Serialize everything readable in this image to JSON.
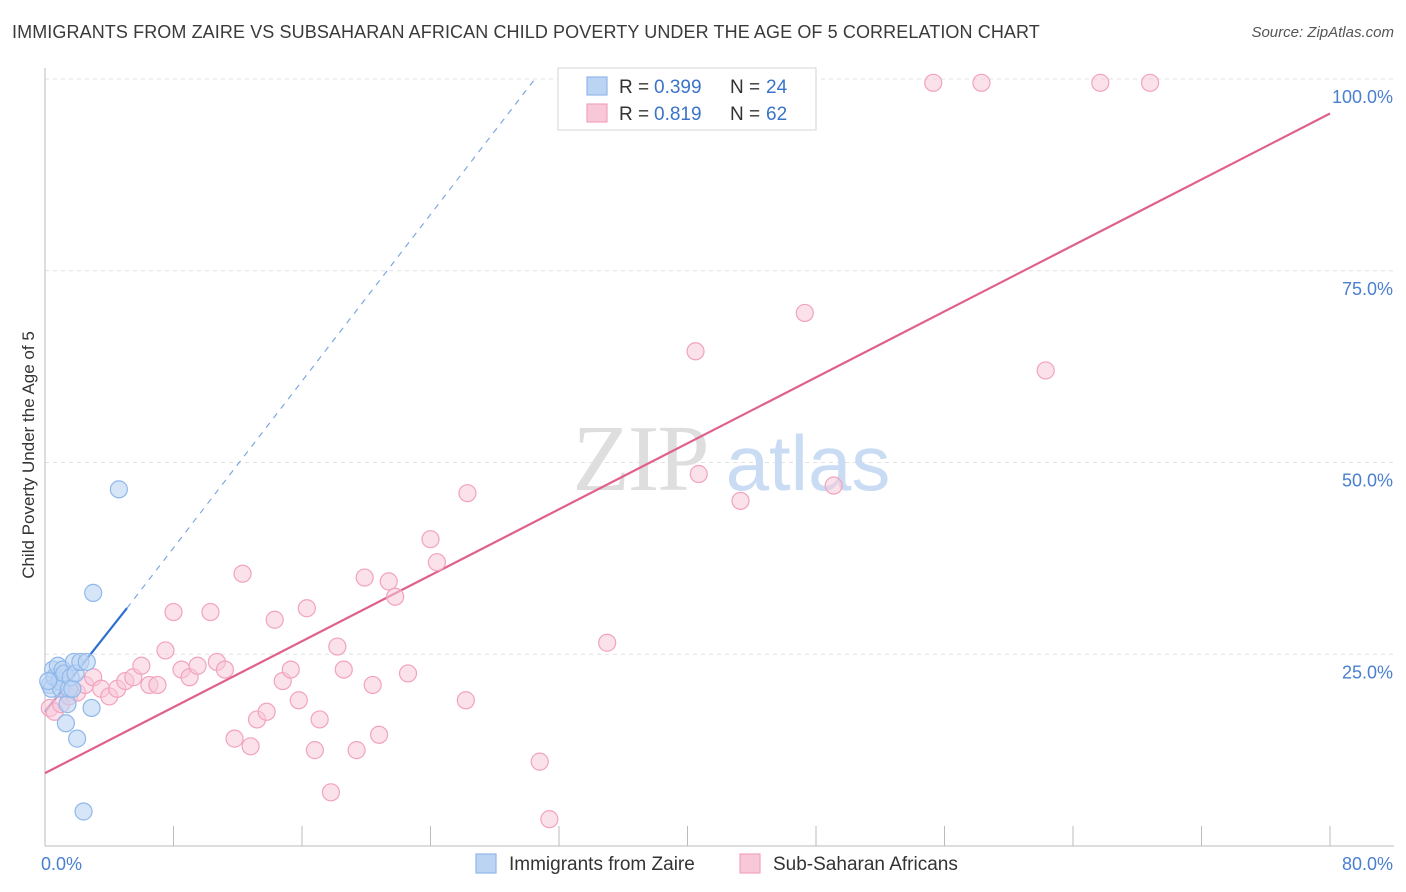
{
  "title": "IMMIGRANTS FROM ZAIRE VS SUBSAHARAN AFRICAN CHILD POVERTY UNDER THE AGE OF 5 CORRELATION CHART",
  "source": "Source: ZipAtlas.com",
  "watermark": {
    "zip": "ZIP",
    "atlas": "atlas"
  },
  "chart_data": {
    "type": "scatter",
    "title": "IMMIGRANTS FROM ZAIRE VS SUBSAHARAN AFRICAN CHILD POVERTY UNDER THE AGE OF 5 CORRELATION CHART",
    "xlabel": "",
    "ylabel": "Child Poverty Under the Age of 5",
    "xlim": [
      0,
      80
    ],
    "ylim": [
      0,
      100
    ],
    "x_tick_labels": [
      "0.0%",
      "80.0%"
    ],
    "y_ticks": [
      25,
      50,
      75,
      100
    ],
    "y_tick_labels": [
      "25.0%",
      "50.0%",
      "75.0%",
      "100.0%"
    ],
    "grid": true,
    "legend_position": "top-center",
    "stats": [
      {
        "r_label": "R =",
        "r": "0.399",
        "n_label": "N =",
        "n": "24"
      },
      {
        "r_label": "R =",
        "r": "0.819",
        "n_label": "N =",
        "n": "62"
      }
    ],
    "series": [
      {
        "name": "Immigrants from Zaire",
        "color": "#8fb8ea",
        "fill": "#bcd4f3",
        "line_color": "#2f6fd0",
        "trend": {
          "x0": 0,
          "y0": 17.5,
          "x1": 5.1,
          "y1": 31.0,
          "dash_to_x": 30.5,
          "dash_to_y": 100
        },
        "points": [
          [
            0.3,
            21
          ],
          [
            0.4,
            20.5
          ],
          [
            0.5,
            23
          ],
          [
            0.6,
            22
          ],
          [
            0.8,
            23.5
          ],
          [
            0.9,
            21.5
          ],
          [
            1.0,
            20.5
          ],
          [
            1.1,
            23
          ],
          [
            1.2,
            22.5
          ],
          [
            1.3,
            16
          ],
          [
            1.4,
            18.5
          ],
          [
            1.5,
            20.5
          ],
          [
            1.6,
            22
          ],
          [
            1.7,
            20.5
          ],
          [
            1.8,
            24
          ],
          [
            1.9,
            22.5
          ],
          [
            2.0,
            14
          ],
          [
            2.2,
            24
          ],
          [
            2.4,
            4.5
          ],
          [
            2.6,
            24
          ],
          [
            2.9,
            18
          ],
          [
            3.0,
            33
          ],
          [
            4.6,
            46.5
          ],
          [
            0.2,
            21.5
          ]
        ]
      },
      {
        "name": "Sub-Saharan Africans",
        "color": "#f2a3bd",
        "fill": "#f8c8d8",
        "line_color": "#e0608d",
        "trend": {
          "x0": 0,
          "y0": 9.5,
          "x1": 80,
          "y1": 95.5
        },
        "points": [
          [
            0.3,
            18
          ],
          [
            0.6,
            17.5
          ],
          [
            1.0,
            18.5
          ],
          [
            1.5,
            19.5
          ],
          [
            2.0,
            20
          ],
          [
            2.5,
            21
          ],
          [
            3.0,
            22
          ],
          [
            3.5,
            20.5
          ],
          [
            4.0,
            19.5
          ],
          [
            4.5,
            20.5
          ],
          [
            5.0,
            21.5
          ],
          [
            5.5,
            22
          ],
          [
            6.0,
            23.5
          ],
          [
            6.5,
            21
          ],
          [
            7.0,
            21
          ],
          [
            7.5,
            25.5
          ],
          [
            8.0,
            30.5
          ],
          [
            8.5,
            23
          ],
          [
            9.0,
            22
          ],
          [
            9.5,
            23.5
          ],
          [
            10.3,
            30.5
          ],
          [
            10.7,
            24
          ],
          [
            11.2,
            23
          ],
          [
            11.8,
            14
          ],
          [
            12.3,
            35.5
          ],
          [
            12.8,
            13
          ],
          [
            13.2,
            16.5
          ],
          [
            13.8,
            17.5
          ],
          [
            14.3,
            29.5
          ],
          [
            14.8,
            21.5
          ],
          [
            15.3,
            23
          ],
          [
            15.8,
            19
          ],
          [
            16.3,
            31
          ],
          [
            16.8,
            12.5
          ],
          [
            17.1,
            16.5
          ],
          [
            17.8,
            7
          ],
          [
            18.2,
            26
          ],
          [
            18.6,
            23
          ],
          [
            19.4,
            12.5
          ],
          [
            19.9,
            35
          ],
          [
            20.4,
            21
          ],
          [
            20.8,
            14.5
          ],
          [
            21.4,
            34.5
          ],
          [
            21.8,
            32.5
          ],
          [
            22.6,
            22.5
          ],
          [
            24.0,
            40
          ],
          [
            24.4,
            37
          ],
          [
            26.2,
            19
          ],
          [
            26.3,
            46
          ],
          [
            30.8,
            11
          ],
          [
            31.4,
            3.5
          ],
          [
            35.0,
            26.5
          ],
          [
            40.5,
            64.5
          ],
          [
            40.7,
            48.5
          ],
          [
            43.3,
            45
          ],
          [
            47.3,
            69.5
          ],
          [
            49.1,
            47
          ],
          [
            55.3,
            99.5
          ],
          [
            58.3,
            99.5
          ],
          [
            62.3,
            62
          ],
          [
            65.7,
            99.5
          ],
          [
            68.8,
            99.5
          ]
        ]
      }
    ]
  }
}
